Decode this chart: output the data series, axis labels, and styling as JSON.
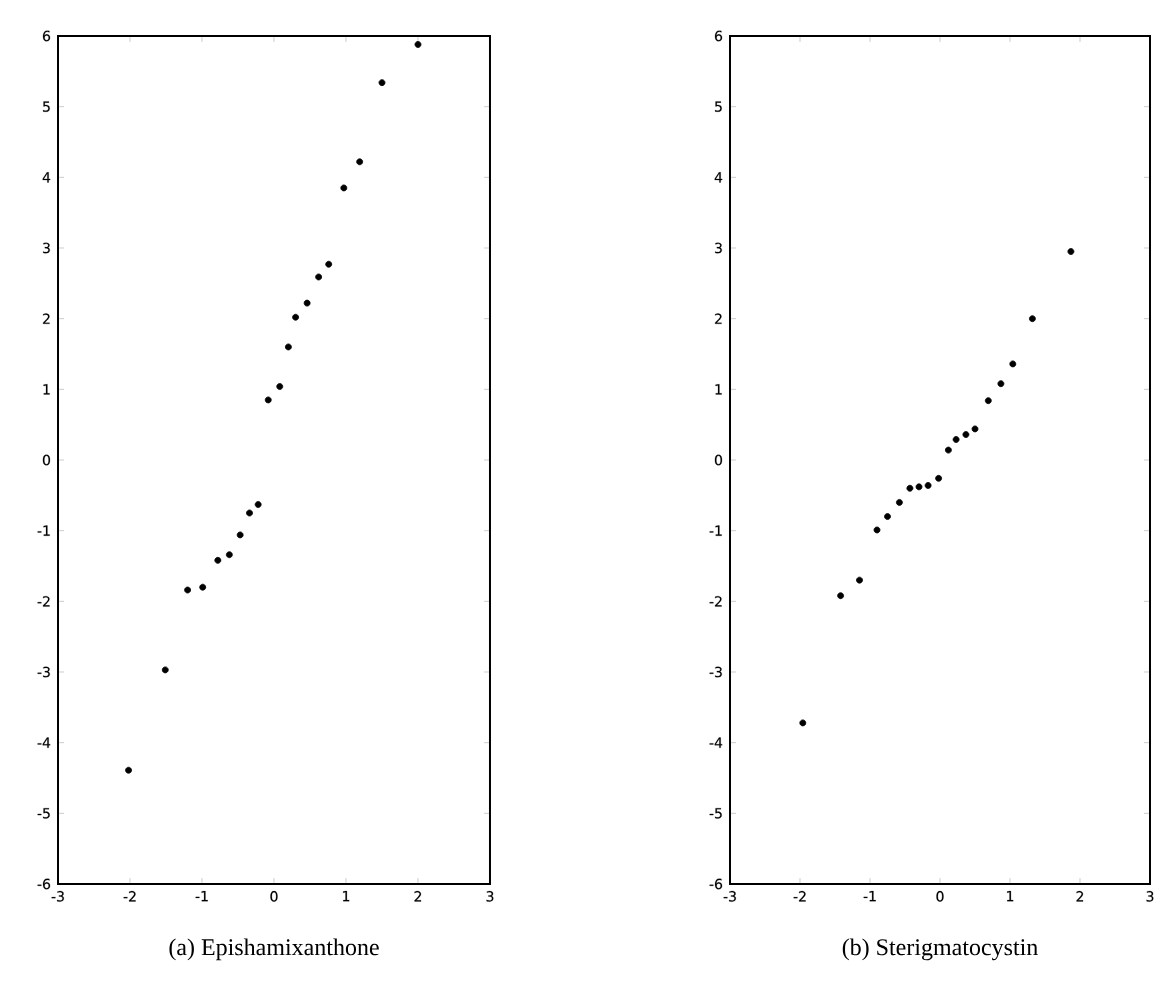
{
  "chart_data": [
    {
      "type": "scatter",
      "title": "(a)  Epishamixanthone",
      "color": "#000000",
      "grid": false,
      "x": [
        -2.02,
        -1.51,
        -1.2,
        -0.99,
        -0.78,
        -0.62,
        -0.47,
        -0.34,
        -0.22,
        -0.08,
        0.08,
        0.2,
        0.3,
        0.46,
        0.62,
        0.76,
        0.97,
        1.19,
        1.5,
        2.0
      ],
      "values": [
        -4.39,
        -2.97,
        -1.84,
        -1.8,
        -1.42,
        -1.34,
        -1.06,
        -0.75,
        -0.63,
        0.85,
        1.04,
        1.6,
        2.02,
        2.22,
        2.59,
        2.77,
        3.85,
        4.22,
        5.34,
        5.88
      ],
      "xlim": [
        -3,
        3
      ],
      "xticks": [
        -3,
        -2,
        -1,
        0,
        1,
        2,
        3
      ],
      "ylim": [
        -6,
        6
      ],
      "yticks": [
        -6,
        -5,
        -4,
        -3,
        -2,
        -1,
        0,
        1,
        2,
        3,
        4,
        5,
        6
      ]
    },
    {
      "type": "scatter",
      "title": "(b)  Sterigmatocystin",
      "color": "#000000",
      "grid": false,
      "x": [
        -1.96,
        -1.42,
        -1.15,
        -0.9,
        -0.75,
        -0.58,
        -0.43,
        -0.3,
        -0.17,
        -0.02,
        0.12,
        0.23,
        0.37,
        0.5,
        0.69,
        0.87,
        1.04,
        1.32,
        1.87
      ],
      "values": [
        -3.72,
        -1.92,
        -1.7,
        -0.99,
        -0.8,
        -0.6,
        -0.4,
        -0.38,
        -0.36,
        -0.26,
        0.14,
        0.29,
        0.36,
        0.44,
        0.84,
        1.08,
        1.36,
        2.0,
        2.95
      ],
      "xlim": [
        -3,
        3
      ],
      "xticks": [
        -3,
        -2,
        -1,
        0,
        1,
        2,
        3
      ],
      "ylim": [
        -6,
        6
      ],
      "yticks": [
        -6,
        -5,
        -4,
        -3,
        -2,
        -1,
        0,
        1,
        2,
        3,
        4,
        5,
        6
      ]
    }
  ]
}
